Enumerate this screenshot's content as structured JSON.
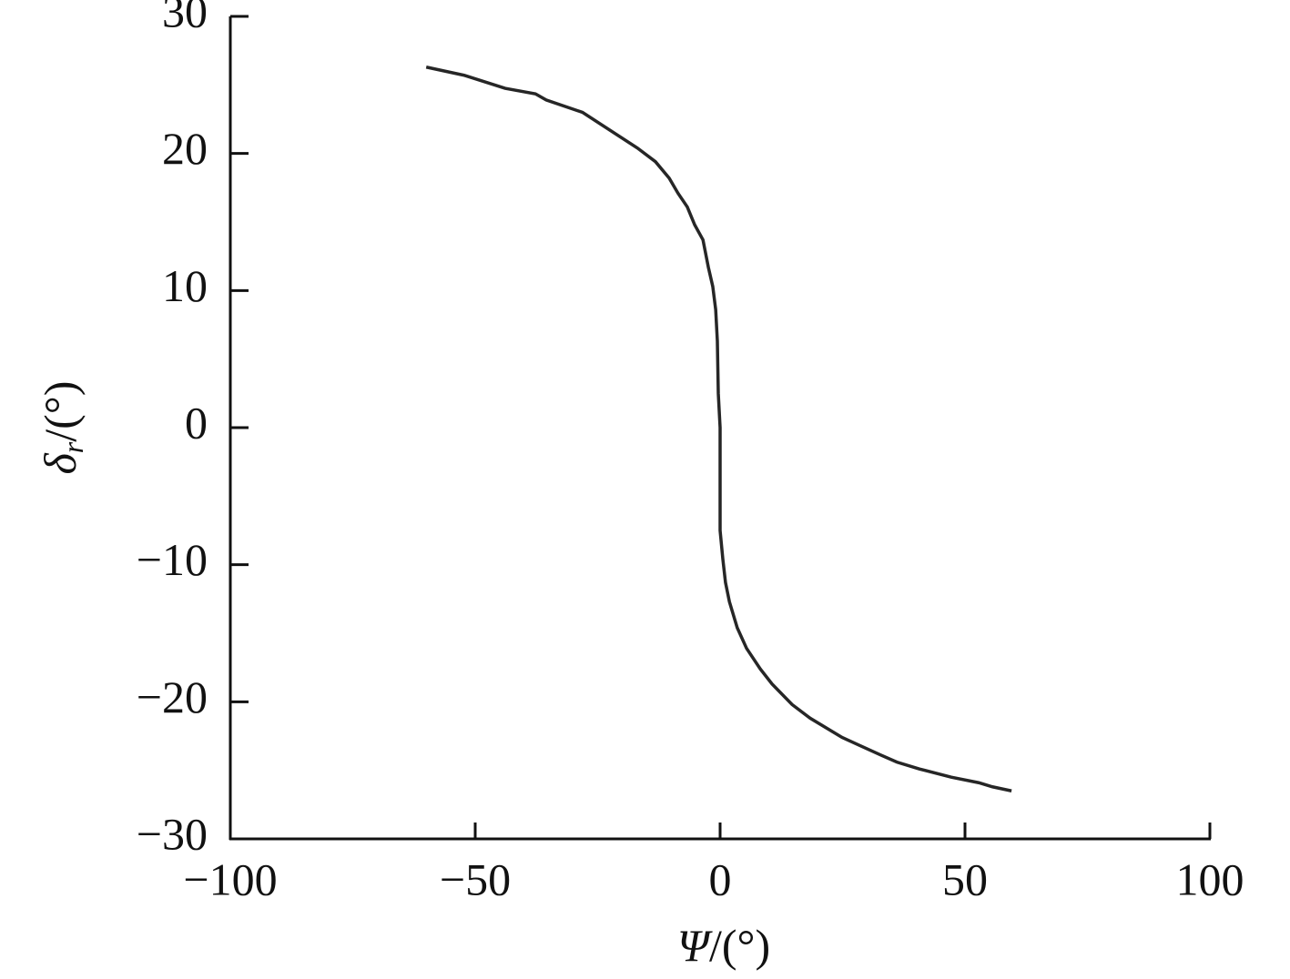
{
  "chart_data": {
    "type": "line",
    "x_label": {
      "symbol": "Ψ",
      "unit": "/(°)"
    },
    "y_label": {
      "symbol": "δ",
      "subscript": "r",
      "unit": "/(°)"
    },
    "xlim": [
      -100,
      100
    ],
    "ylim": [
      -30,
      30
    ],
    "xticks": [
      {
        "value": -100,
        "label": "−100"
      },
      {
        "value": -50,
        "label": "−50"
      },
      0,
      50,
      100
    ],
    "yticks": [
      {
        "value": -30,
        "label": "−30"
      },
      {
        "value": -20,
        "label": "−20"
      },
      {
        "value": -10,
        "label": "−10"
      },
      0,
      10,
      20,
      30
    ],
    "x": [
      -60,
      -52.2,
      -43.9,
      -37.7,
      -35.5,
      -28.1,
      -16.9,
      -13.2,
      -10.4,
      -8.6,
      -6.7,
      -5.2,
      -3.5,
      -2.4,
      -1.5,
      -0.9,
      -0.56,
      -0.37,
      0,
      0,
      0.56,
      1.1,
      1.9,
      3.5,
      5.4,
      8.2,
      10.6,
      14.7,
      18.4,
      24.9,
      28.6,
      32.9,
      36.1,
      40.7,
      47.2,
      52.8,
      55.6,
      59.5
    ],
    "series": [
      {
        "color": "#262626",
        "values": [
          26.3,
          25.7,
          24.75,
          24.35,
          23.9,
          23.0,
          20.4,
          19.4,
          18.2,
          17.1,
          16.1,
          14.8,
          13.7,
          11.7,
          10.3,
          8.6,
          6.3,
          2.5,
          0,
          -7.5,
          -9.6,
          -11.3,
          -12.7,
          -14.6,
          -16.1,
          -17.6,
          -18.7,
          -20.2,
          -21.2,
          -22.6,
          -23.2,
          -23.9,
          -24.4,
          -24.9,
          -25.5,
          -25.9,
          -26.2,
          -26.5
        ]
      }
    ]
  }
}
